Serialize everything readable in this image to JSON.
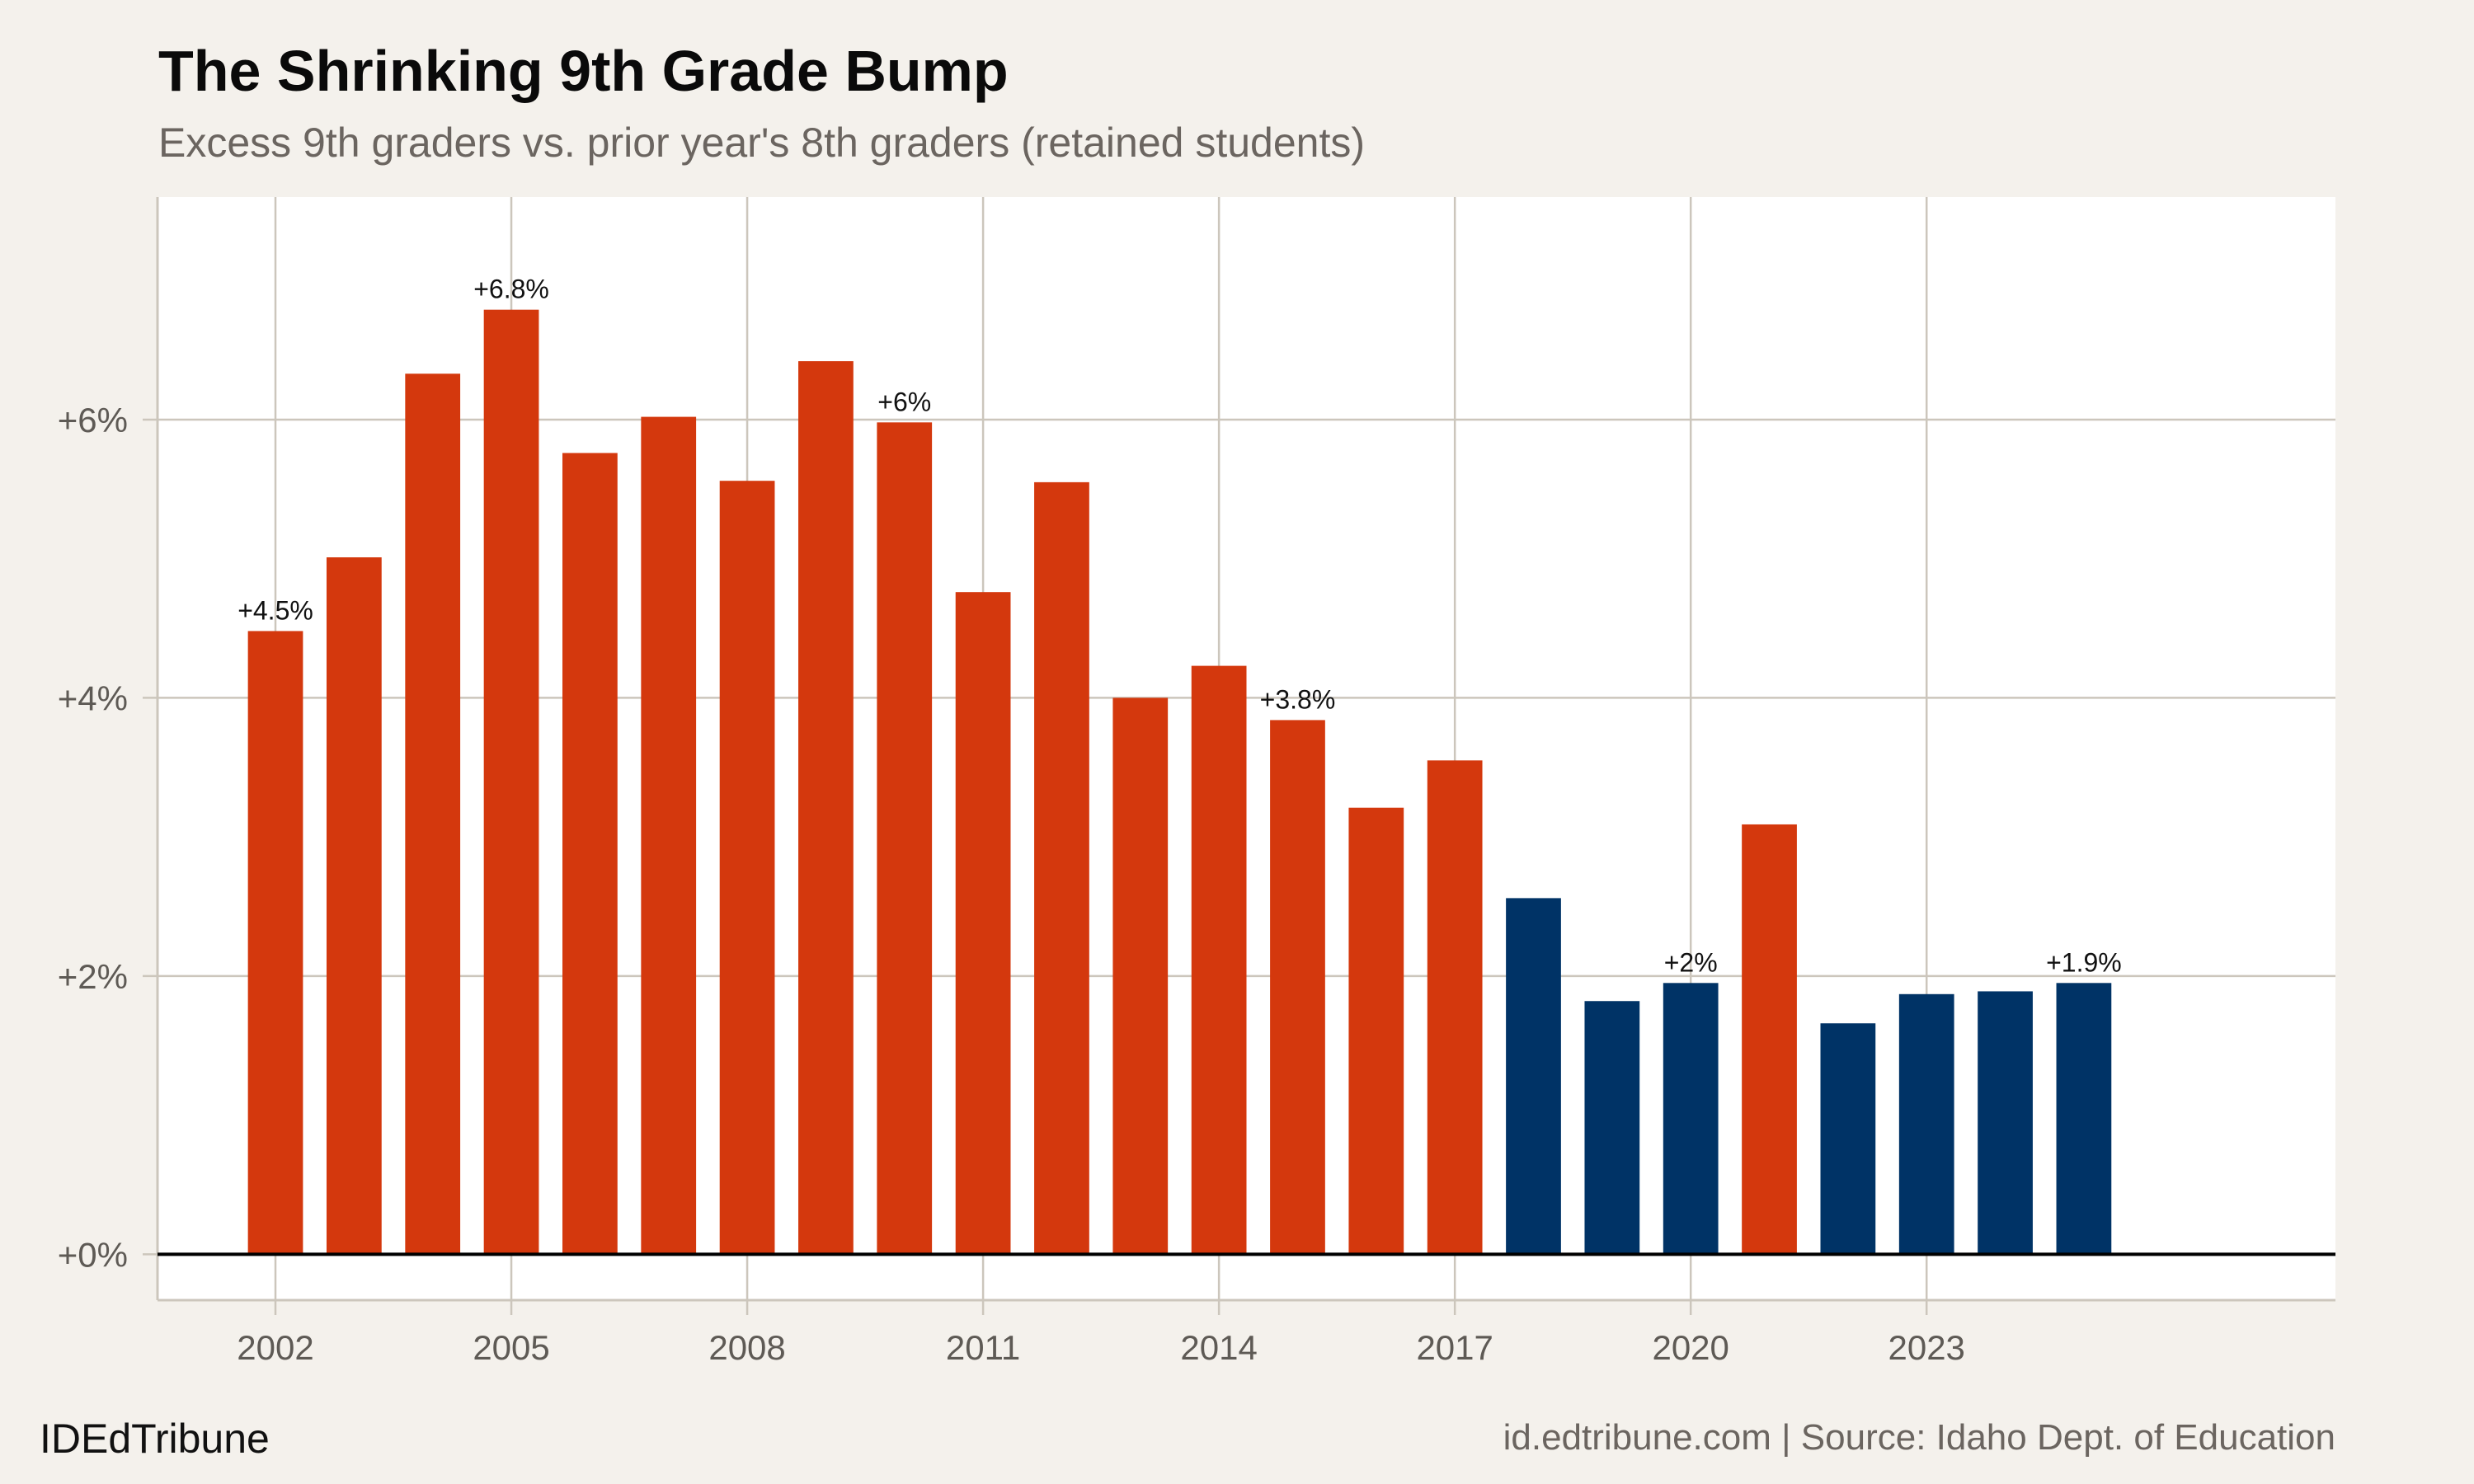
{
  "chart_data": {
    "type": "bar",
    "title": "The Shrinking 9th Grade Bump",
    "subtitle": "Excess 9th graders vs. prior year's 8th graders (retained students)",
    "xlabel": "",
    "ylabel": "",
    "x": [
      2002,
      2003,
      2004,
      2005,
      2006,
      2007,
      2008,
      2009,
      2010,
      2011,
      2012,
      2013,
      2014,
      2015,
      2016,
      2017,
      2018,
      2019,
      2020,
      2021,
      2022,
      2023,
      2024,
      2025
    ],
    "values": [
      4.48,
      5.01,
      6.33,
      6.79,
      5.76,
      6.02,
      5.56,
      6.42,
      5.98,
      4.76,
      5.55,
      4.0,
      4.23,
      3.84,
      3.21,
      3.55,
      2.56,
      1.82,
      1.95,
      3.09,
      1.66,
      1.87,
      1.89,
      1.95
    ],
    "bar_group": [
      "orange",
      "orange",
      "orange",
      "orange",
      "orange",
      "orange",
      "orange",
      "orange",
      "orange",
      "orange",
      "orange",
      "orange",
      "orange",
      "orange",
      "orange",
      "orange",
      "blue",
      "blue",
      "blue",
      "orange",
      "blue",
      "blue",
      "blue",
      "blue"
    ],
    "colors": {
      "orange": "#d4380d",
      "blue": "#003366",
      "background": "#f4f1ec",
      "panel": "#ffffff",
      "grid": "#ccc6bc",
      "zero_line": "#000000"
    },
    "data_labels": [
      {
        "x": 2002,
        "text": "+4.5%"
      },
      {
        "x": 2005,
        "text": "+6.8%"
      },
      {
        "x": 2010,
        "text": "+6%"
      },
      {
        "x": 2015,
        "text": "+3.8%"
      },
      {
        "x": 2020,
        "text": "+2%"
      },
      {
        "x": 2025,
        "text": "+1.9%"
      }
    ],
    "xlim": [
      2000.5,
      2028.2
    ],
    "ylim": [
      -0.33,
      7.6
    ],
    "x_ticks": [
      2002,
      2005,
      2008,
      2011,
      2014,
      2017,
      2020,
      2023
    ],
    "x_tick_labels": [
      "2002",
      "2005",
      "2008",
      "2011",
      "2014",
      "2017",
      "2020",
      "2023"
    ],
    "y_ticks": [
      0,
      2,
      4,
      6
    ],
    "y_tick_labels": [
      "+0%",
      "+2%",
      "+4%",
      "+6%"
    ],
    "grid": true,
    "legend": "none"
  },
  "footer": {
    "brand": "IDEdTribune",
    "source": "id.edtribune.com | Source: Idaho Dept. of Education"
  }
}
